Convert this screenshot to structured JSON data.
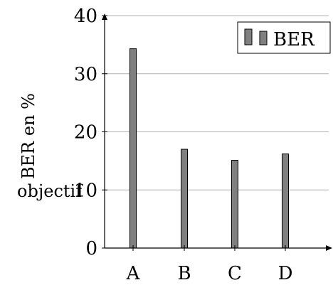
{
  "chart_data": {
    "type": "bar",
    "title": "",
    "categories": [
      "A",
      "B",
      "C",
      "D"
    ],
    "series": [
      {
        "name": "BER",
        "values": [
          34.3,
          17.0,
          15.1,
          16.2
        ],
        "color": "#808080"
      }
    ],
    "ylabel_lines": [
      "BER en %",
      "objectif"
    ],
    "xlabel": "",
    "ylim": [
      0,
      40
    ],
    "yticks": [
      0,
      10,
      20,
      30,
      40
    ],
    "grid": "horizontal",
    "legend_position": "top-right",
    "bar_color": "#808080",
    "edge_color": "#000000",
    "grid_color": "#b0b0b0"
  }
}
